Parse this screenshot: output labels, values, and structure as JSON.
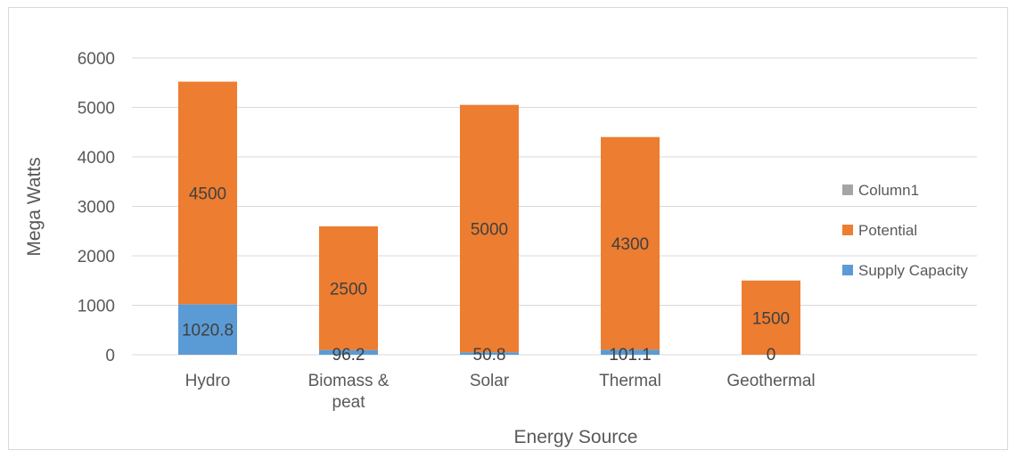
{
  "chart_data": {
    "type": "bar",
    "stacked": true,
    "categories": [
      [
        "Hydro"
      ],
      [
        "Biomass &",
        "peat"
      ],
      [
        "Solar"
      ],
      [
        "Thermal"
      ],
      [
        "Geothermal"
      ]
    ],
    "series": [
      {
        "name": "Supply Capacity",
        "color": "#5b9bd5",
        "values": [
          1020.8,
          96.2,
          50.8,
          101.1,
          0
        ]
      },
      {
        "name": "Potential",
        "color": "#ed7d31",
        "values": [
          4500,
          2500,
          5000,
          4300,
          1500
        ]
      },
      {
        "name": "Column1",
        "color": "#a5a5a5",
        "values": [
          null,
          null,
          null,
          null,
          null
        ]
      }
    ],
    "data_labels": {
      "Supply Capacity": [
        "1020.8",
        "96.2",
        "50.8",
        "101.1",
        "0"
      ],
      "Potential": [
        "4500",
        "2500",
        "5000",
        "4300",
        "1500"
      ]
    },
    "xlabel": "Energy Source",
    "ylabel": "Mega Watts",
    "ylim": [
      0,
      6000
    ],
    "yticks": [
      0,
      1000,
      2000,
      3000,
      4000,
      5000,
      6000
    ],
    "grid": true,
    "legend_position": "right",
    "legend_order": [
      "Column1",
      "Potential",
      "Supply Capacity"
    ]
  }
}
